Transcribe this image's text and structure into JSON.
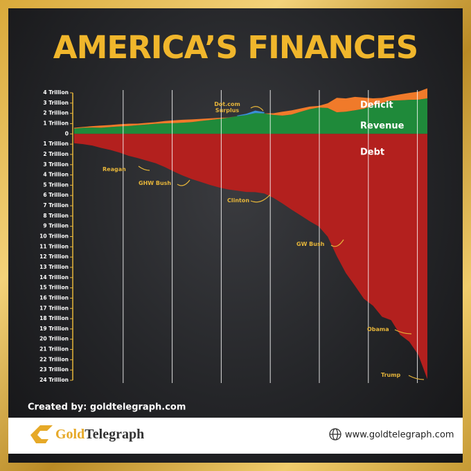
{
  "chart_data": {
    "type": "stacked-area",
    "title": "AMERICA’S FINANCES",
    "categories": [
      null,
      null,
      null,
      null,
      null,
      null,
      null,
      null,
      null,
      null,
      null,
      null,
      null,
      null,
      null,
      null,
      null,
      null,
      null,
      null,
      null,
      null,
      null,
      null,
      null,
      null,
      null,
      null,
      null,
      null,
      null,
      null,
      null,
      null,
      null,
      null,
      null,
      null,
      null,
      null
    ],
    "series": [
      {
        "name": "Revenue",
        "color": "#1f8a3a",
        "stack": "up",
        "values": [
          0.52,
          0.6,
          0.62,
          0.6,
          0.67,
          0.73,
          0.77,
          0.85,
          0.91,
          0.99,
          1.03,
          1.05,
          1.09,
          1.15,
          1.26,
          1.35,
          1.45,
          1.58,
          1.72,
          1.83,
          2.03,
          1.99,
          1.85,
          1.78,
          1.88,
          2.15,
          2.41,
          2.57,
          2.52,
          2.1,
          2.16,
          2.3,
          2.45,
          2.78,
          3.02,
          3.25,
          3.27,
          3.32,
          3.33,
          3.46
        ]
      },
      {
        "name": "Deficit",
        "color": "#f07a2a",
        "stack": "up",
        "values": [
          0.07,
          0.08,
          0.13,
          0.21,
          0.19,
          0.21,
          0.22,
          0.15,
          0.16,
          0.15,
          0.22,
          0.27,
          0.29,
          0.26,
          0.2,
          0.16,
          0.11,
          0.02,
          0,
          0,
          0,
          0,
          0.16,
          0.38,
          0.41,
          0.32,
          0.25,
          0.16,
          0.46,
          1.41,
          1.29,
          1.3,
          1.09,
          0.68,
          0.48,
          0.44,
          0.58,
          0.67,
          0.78,
          0.98
        ]
      },
      {
        "name": "Dot.com Surplus",
        "color": "#3a8fd6",
        "stack": "up",
        "values": [
          null,
          null,
          null,
          null,
          null,
          null,
          null,
          null,
          null,
          null,
          null,
          null,
          null,
          null,
          null,
          null,
          null,
          null,
          0.07,
          0.13,
          0.24,
          0.13,
          null,
          null,
          null,
          null,
          null,
          null,
          null,
          null,
          null,
          null,
          null,
          null,
          null,
          null,
          null,
          null,
          null,
          null
        ]
      },
      {
        "name": "Debt",
        "color": "#b3201e",
        "stack": "down",
        "values": [
          -0.91,
          -1.0,
          -1.14,
          -1.37,
          -1.57,
          -1.82,
          -2.13,
          -2.35,
          -2.6,
          -2.86,
          -3.23,
          -3.67,
          -4.06,
          -4.41,
          -4.69,
          -4.97,
          -5.22,
          -5.41,
          -5.53,
          -5.66,
          -5.67,
          -5.81,
          -6.23,
          -6.78,
          -7.38,
          -7.93,
          -8.51,
          -9.01,
          -10.02,
          -11.91,
          -13.56,
          -14.79,
          -16.07,
          -16.74,
          -17.82,
          -18.15,
          -19.57,
          -20.24,
          -21.52,
          -23.9
        ]
      }
    ],
    "ylim": [
      4,
      -24
    ],
    "yticks": [
      {
        "value": 4,
        "label": "4 Trillion"
      },
      {
        "value": 3,
        "label": "3 Trillion"
      },
      {
        "value": 2,
        "label": "2 Trillion"
      },
      {
        "value": 1,
        "label": "1 Trillion"
      },
      0,
      {
        "value": -1,
        "label": "1 Trillion"
      },
      {
        "value": -2,
        "label": "2 Trillion"
      },
      {
        "value": -3,
        "label": "3 Trillion"
      },
      {
        "value": -4,
        "label": "4 Trillion"
      },
      {
        "value": -5,
        "label": "5 Trillion"
      },
      {
        "value": -6,
        "label": "6 Trillion"
      },
      {
        "value": -7,
        "label": "7 Trillion"
      },
      {
        "value": -8,
        "label": "8 Trillion"
      },
      {
        "value": -9,
        "label": "9 Trillion"
      },
      {
        "value": -10,
        "label": "10 Trillion"
      },
      {
        "value": -11,
        "label": "11 Trillion"
      },
      {
        "value": -12,
        "label": "12 Trillion"
      },
      {
        "value": -13,
        "label": "13 Trillion"
      },
      {
        "value": -14,
        "label": "14 Trillion"
      },
      {
        "value": -15,
        "label": "15 Trillion"
      },
      {
        "value": -16,
        "label": "16 Trillion"
      },
      {
        "value": -17,
        "label": "17 Trillion"
      },
      {
        "value": -18,
        "label": "18 Trillion"
      },
      {
        "value": -19,
        "label": "19 Trillion"
      },
      {
        "value": -20,
        "label": "20 Trillion"
      },
      {
        "value": -21,
        "label": "21 Trillion"
      },
      {
        "value": -22,
        "label": "22 Trillion"
      },
      {
        "value": -23,
        "label": "23 Trillion"
      },
      {
        "value": -24,
        "label": "24 Trillion"
      }
    ],
    "annotations": [
      "Reagan",
      "GHW Bush",
      "Clinton",
      "GW Bush",
      "Obama",
      "Trump"
    ]
  },
  "footer": {
    "credit": "Created by: goldtelegraph.com",
    "logo_gold": "Gold",
    "logo_dark": "Telegraph",
    "url": "www.goldtelegraph.com"
  }
}
